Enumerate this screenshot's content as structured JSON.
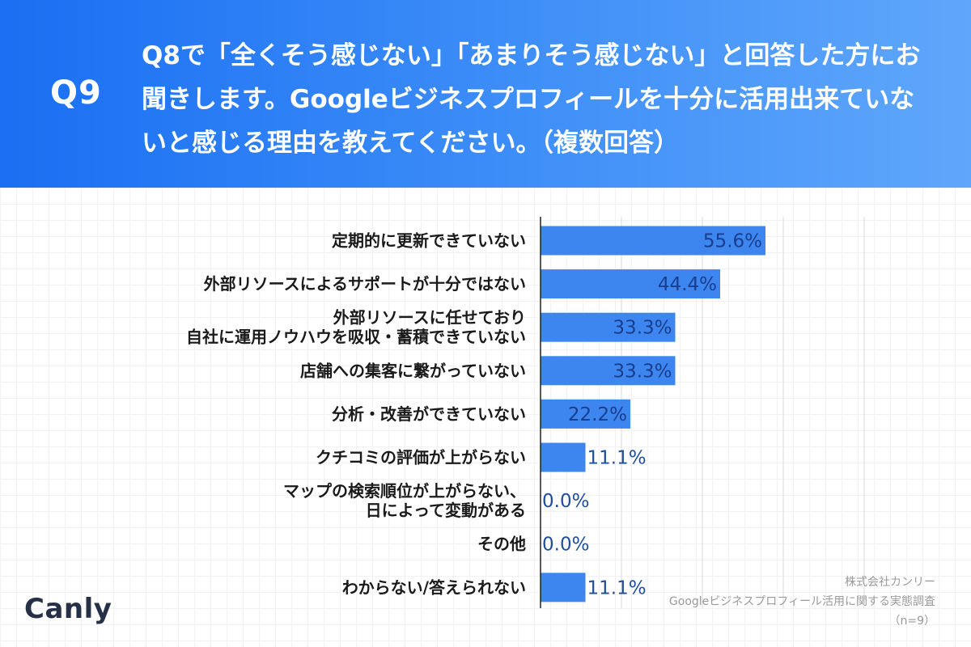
{
  "header": {
    "qnum": "Q9",
    "question": "Q8で「全くそう感じない」「あまりそう感じない」と回答した方にお聞きします。Googleビジネスプロフィールを十分に活用出来ていないと感じる理由を教えてください。（複数回答）"
  },
  "colors": {
    "bar": "#3d86f0",
    "value_inside": "#1a3e8c",
    "value_outside": "#1f4f9c",
    "gridline": "#d8d8d8",
    "header_start": "#1a6ff2",
    "header_end": "#5fa7fb"
  },
  "chart_data": {
    "type": "bar",
    "orientation": "horizontal",
    "categories": [
      "定期的に更新できていない",
      "外部リソースによるサポートが十分ではない",
      "外部リソースに任せており\n自社に運用ノウハウを吸収・蓄積できていない",
      "店舗への集客に繋がっていない",
      "分析・改善ができていない",
      "クチコミの評価が上がらない",
      "マップの検索順位が上がらない、\n日によって変動がある",
      "その他",
      "わからない/答えられない"
    ],
    "values": [
      55.6,
      44.4,
      33.3,
      33.3,
      22.2,
      11.1,
      0.0,
      0.0,
      11.1
    ],
    "value_labels": [
      "55.6%",
      "44.4%",
      "33.3%",
      "33.3%",
      "22.2%",
      "11.1%",
      "0.0%",
      "0.0%",
      "11.1%"
    ],
    "xlim": [
      0,
      80
    ],
    "grid": true
  },
  "brand": {
    "logo": "Canly"
  },
  "source": {
    "line1": "株式会社カンリー",
    "line2": "Googleビジネスプロフィール活用に関する実態調査",
    "line3": "（n=9）"
  }
}
